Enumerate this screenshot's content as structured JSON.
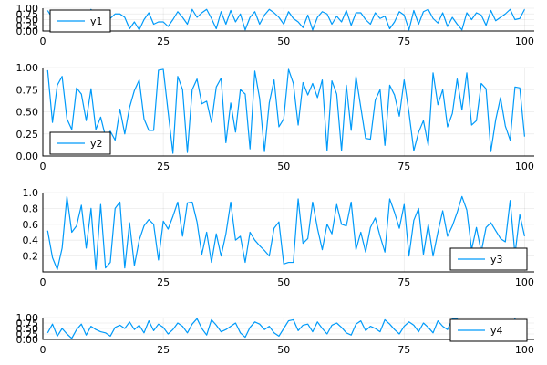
{
  "chart_data": [
    {
      "type": "line",
      "legend_position": "top-left",
      "xlim": [
        0,
        102
      ],
      "ylim": [
        0,
        1
      ],
      "xticks": [
        0,
        25,
        50,
        75,
        100
      ],
      "xtick_labels": [
        "0",
        "25",
        "50",
        "75",
        "100"
      ],
      "yticks": [
        0,
        0.25,
        0.5,
        0.75,
        1.0
      ],
      "ytick_labels": [
        "0.00",
        "0.25",
        "0.50",
        "0.75",
        "1.00"
      ],
      "series": [
        {
          "name": "y1",
          "color": "#009af9",
          "x": [
            1,
            2,
            3,
            4,
            5,
            6,
            7,
            8,
            9,
            10,
            11,
            12,
            13,
            14,
            15,
            16,
            17,
            18,
            19,
            20,
            21,
            22,
            23,
            24,
            25,
            26,
            27,
            28,
            29,
            30,
            31,
            32,
            33,
            34,
            35,
            36,
            37,
            38,
            39,
            40,
            41,
            42,
            43,
            44,
            45,
            46,
            47,
            48,
            49,
            50,
            51,
            52,
            53,
            54,
            55,
            56,
            57,
            58,
            59,
            60,
            61,
            62,
            63,
            64,
            65,
            66,
            67,
            68,
            69,
            70,
            71,
            72,
            73,
            74,
            75,
            76,
            77,
            78,
            79,
            80,
            81,
            82,
            83,
            84,
            85,
            86,
            87,
            88,
            89,
            90,
            91,
            92,
            93,
            94,
            95,
            96,
            97,
            98,
            99,
            100
          ],
          "values": [
            0.9,
            0.55,
            0.85,
            0.3,
            0.7,
            0.9,
            0.15,
            0.8,
            0.4,
            0.95,
            0.6,
            0.35,
            0.9,
            0.55,
            0.75,
            0.75,
            0.6,
            0.1,
            0.4,
            0.05,
            0.5,
            0.8,
            0.3,
            0.4,
            0.4,
            0.2,
            0.5,
            0.85,
            0.6,
            0.3,
            0.95,
            0.6,
            0.8,
            0.95,
            0.55,
            0.1,
            0.85,
            0.3,
            0.9,
            0.4,
            0.75,
            0.05,
            0.6,
            0.85,
            0.3,
            0.7,
            0.95,
            0.8,
            0.6,
            0.3,
            0.85,
            0.55,
            0.4,
            0.15,
            0.7,
            0.05,
            0.6,
            0.85,
            0.75,
            0.3,
            0.65,
            0.4,
            0.9,
            0.25,
            0.8,
            0.8,
            0.5,
            0.3,
            0.8,
            0.55,
            0.65,
            0.1,
            0.4,
            0.85,
            0.7,
            0.05,
            0.9,
            0.3,
            0.85,
            0.95,
            0.55,
            0.35,
            0.8,
            0.2,
            0.6,
            0.3,
            0.05,
            0.8,
            0.5,
            0.8,
            0.7,
            0.25,
            0.9,
            0.45,
            0.6,
            0.75,
            0.95,
            0.5,
            0.55,
            0.95
          ]
        }
      ]
    },
    {
      "type": "line",
      "legend_position": "bottom-left",
      "xlim": [
        0,
        102
      ],
      "ylim": [
        0,
        1
      ],
      "xticks": [
        0,
        25,
        50,
        75,
        100
      ],
      "xtick_labels": [
        "0",
        "25",
        "50",
        "75",
        "100"
      ],
      "yticks": [
        0,
        0.25,
        0.5,
        0.75,
        1.0
      ],
      "ytick_labels": [
        "0.00",
        "0.25",
        "0.50",
        "0.75",
        "1.00"
      ],
      "series": [
        {
          "name": "y2",
          "color": "#009af9",
          "x": [
            1,
            2,
            3,
            4,
            5,
            6,
            7,
            8,
            9,
            10,
            11,
            12,
            13,
            14,
            15,
            16,
            17,
            18,
            19,
            20,
            21,
            22,
            23,
            24,
            25,
            26,
            27,
            28,
            29,
            30,
            31,
            32,
            33,
            34,
            35,
            36,
            37,
            38,
            39,
            40,
            41,
            42,
            43,
            44,
            45,
            46,
            47,
            48,
            49,
            50,
            51,
            52,
            53,
            54,
            55,
            56,
            57,
            58,
            59,
            60,
            61,
            62,
            63,
            64,
            65,
            66,
            67,
            68,
            69,
            70,
            71,
            72,
            73,
            74,
            75,
            76,
            77,
            78,
            79,
            80,
            81,
            82,
            83,
            84,
            85,
            86,
            87,
            88,
            89,
            90,
            91,
            92,
            93,
            94,
            95,
            96,
            97,
            98,
            99,
            100
          ],
          "values": [
            0.97,
            0.38,
            0.8,
            0.9,
            0.42,
            0.3,
            0.77,
            0.7,
            0.4,
            0.76,
            0.3,
            0.44,
            0.22,
            0.28,
            0.18,
            0.53,
            0.25,
            0.55,
            0.74,
            0.86,
            0.42,
            0.29,
            0.29,
            0.97,
            0.98,
            0.5,
            0.03,
            0.9,
            0.75,
            0.04,
            0.75,
            0.87,
            0.59,
            0.62,
            0.38,
            0.78,
            0.88,
            0.15,
            0.6,
            0.27,
            0.75,
            0.7,
            0.08,
            0.96,
            0.65,
            0.05,
            0.6,
            0.86,
            0.33,
            0.42,
            0.98,
            0.82,
            0.35,
            0.83,
            0.69,
            0.82,
            0.66,
            0.86,
            0.06,
            0.85,
            0.7,
            0.06,
            0.8,
            0.29,
            0.9,
            0.55,
            0.2,
            0.19,
            0.63,
            0.75,
            0.12,
            0.8,
            0.69,
            0.45,
            0.86,
            0.49,
            0.06,
            0.27,
            0.4,
            0.12,
            0.94,
            0.58,
            0.75,
            0.33,
            0.48,
            0.87,
            0.52,
            0.94,
            0.35,
            0.4,
            0.82,
            0.76,
            0.05,
            0.41,
            0.66,
            0.34,
            0.18,
            0.78,
            0.77,
            0.22
          ]
        }
      ]
    },
    {
      "type": "line",
      "legend_position": "bottom-right",
      "xlim": [
        0,
        102
      ],
      "ylim": [
        0,
        1
      ],
      "xticks": [
        0,
        25,
        50,
        75,
        100
      ],
      "xtick_labels": [
        "0",
        "25",
        "50",
        "75",
        "100"
      ],
      "yticks": [
        0.2,
        0.4,
        0.6,
        0.8,
        1.0
      ],
      "ytick_labels": [
        "0.2",
        "0.4",
        "0.6",
        "0.8",
        "1.0"
      ],
      "series": [
        {
          "name": "y3",
          "color": "#009af9",
          "x": [
            1,
            2,
            3,
            4,
            5,
            6,
            7,
            8,
            9,
            10,
            11,
            12,
            13,
            14,
            15,
            16,
            17,
            18,
            19,
            20,
            21,
            22,
            23,
            24,
            25,
            26,
            27,
            28,
            29,
            30,
            31,
            32,
            33,
            34,
            35,
            36,
            37,
            38,
            39,
            40,
            41,
            42,
            43,
            44,
            45,
            46,
            47,
            48,
            49,
            50,
            51,
            52,
            53,
            54,
            55,
            56,
            57,
            58,
            59,
            60,
            61,
            62,
            63,
            64,
            65,
            66,
            67,
            68,
            69,
            70,
            71,
            72,
            73,
            74,
            75,
            76,
            77,
            78,
            79,
            80,
            81,
            82,
            83,
            84,
            85,
            86,
            87,
            88,
            89,
            90,
            91,
            92,
            93,
            94,
            95,
            96,
            97,
            98,
            99,
            100
          ],
          "values": [
            0.52,
            0.18,
            0.03,
            0.3,
            0.95,
            0.5,
            0.58,
            0.84,
            0.3,
            0.8,
            0.03,
            0.85,
            0.05,
            0.12,
            0.8,
            0.88,
            0.05,
            0.62,
            0.08,
            0.4,
            0.58,
            0.66,
            0.6,
            0.15,
            0.64,
            0.54,
            0.7,
            0.88,
            0.45,
            0.87,
            0.88,
            0.63,
            0.22,
            0.5,
            0.12,
            0.48,
            0.2,
            0.48,
            0.88,
            0.4,
            0.45,
            0.12,
            0.5,
            0.4,
            0.33,
            0.27,
            0.2,
            0.55,
            0.63,
            0.1,
            0.12,
            0.12,
            0.92,
            0.36,
            0.42,
            0.88,
            0.55,
            0.28,
            0.6,
            0.48,
            0.85,
            0.6,
            0.58,
            0.88,
            0.28,
            0.5,
            0.25,
            0.56,
            0.68,
            0.45,
            0.25,
            0.92,
            0.75,
            0.55,
            0.85,
            0.2,
            0.65,
            0.8,
            0.22,
            0.6,
            0.2,
            0.5,
            0.77,
            0.45,
            0.58,
            0.75,
            0.95,
            0.78,
            0.28,
            0.56,
            0.25,
            0.56,
            0.62,
            0.52,
            0.42,
            0.38,
            0.9,
            0.22,
            0.72,
            0.45
          ]
        }
      ]
    },
    {
      "type": "line",
      "legend_position": "top-right",
      "xlim": [
        0,
        102
      ],
      "ylim": [
        0,
        1
      ],
      "xticks": [
        0,
        25,
        50,
        75,
        100
      ],
      "xtick_labels": [
        "0",
        "25",
        "50",
        "75",
        "100"
      ],
      "yticks": [
        0,
        0.25,
        0.5,
        0.75,
        1.0
      ],
      "ytick_labels": [
        "0.00",
        "0.25",
        "0.50",
        "0.75",
        "1.00"
      ],
      "series": [
        {
          "name": "y4",
          "color": "#009af9",
          "x": [
            1,
            2,
            3,
            4,
            5,
            6,
            7,
            8,
            9,
            10,
            11,
            12,
            13,
            14,
            15,
            16,
            17,
            18,
            19,
            20,
            21,
            22,
            23,
            24,
            25,
            26,
            27,
            28,
            29,
            30,
            31,
            32,
            33,
            34,
            35,
            36,
            37,
            38,
            39,
            40,
            41,
            42,
            43,
            44,
            45,
            46,
            47,
            48,
            49,
            50,
            51,
            52,
            53,
            54,
            55,
            56,
            57,
            58,
            59,
            60,
            61,
            62,
            63,
            64,
            65,
            66,
            67,
            68,
            69,
            70,
            71,
            72,
            73,
            74,
            75,
            76,
            77,
            78,
            79,
            80,
            81,
            82,
            83,
            84,
            85,
            86,
            87,
            88,
            89,
            90,
            91,
            92,
            93,
            94,
            95,
            96,
            97,
            98,
            99,
            100
          ],
          "values": [
            0.3,
            0.7,
            0.15,
            0.5,
            0.25,
            0.05,
            0.45,
            0.7,
            0.2,
            0.6,
            0.45,
            0.35,
            0.3,
            0.15,
            0.55,
            0.65,
            0.5,
            0.8,
            0.45,
            0.65,
            0.3,
            0.85,
            0.4,
            0.7,
            0.55,
            0.25,
            0.45,
            0.75,
            0.6,
            0.3,
            0.7,
            0.95,
            0.5,
            0.2,
            0.9,
            0.65,
            0.35,
            0.45,
            0.6,
            0.75,
            0.3,
            0.1,
            0.55,
            0.8,
            0.7,
            0.45,
            0.6,
            0.3,
            0.15,
            0.5,
            0.85,
            0.9,
            0.4,
            0.65,
            0.7,
            0.35,
            0.8,
            0.5,
            0.25,
            0.65,
            0.75,
            0.55,
            0.3,
            0.2,
            0.7,
            0.85,
            0.4,
            0.6,
            0.5,
            0.35,
            0.9,
            0.7,
            0.45,
            0.25,
            0.6,
            0.8,
            0.65,
            0.35,
            0.75,
            0.55,
            0.3,
            0.85,
            0.6,
            0.45,
            0.95,
            0.95,
            0.6,
            0.4,
            0.2,
            0.7,
            0.55,
            0.85,
            0.35,
            0.6,
            0.4,
            0.75,
            0.65,
            0.95,
            0.45,
            0.6
          ]
        }
      ]
    }
  ]
}
